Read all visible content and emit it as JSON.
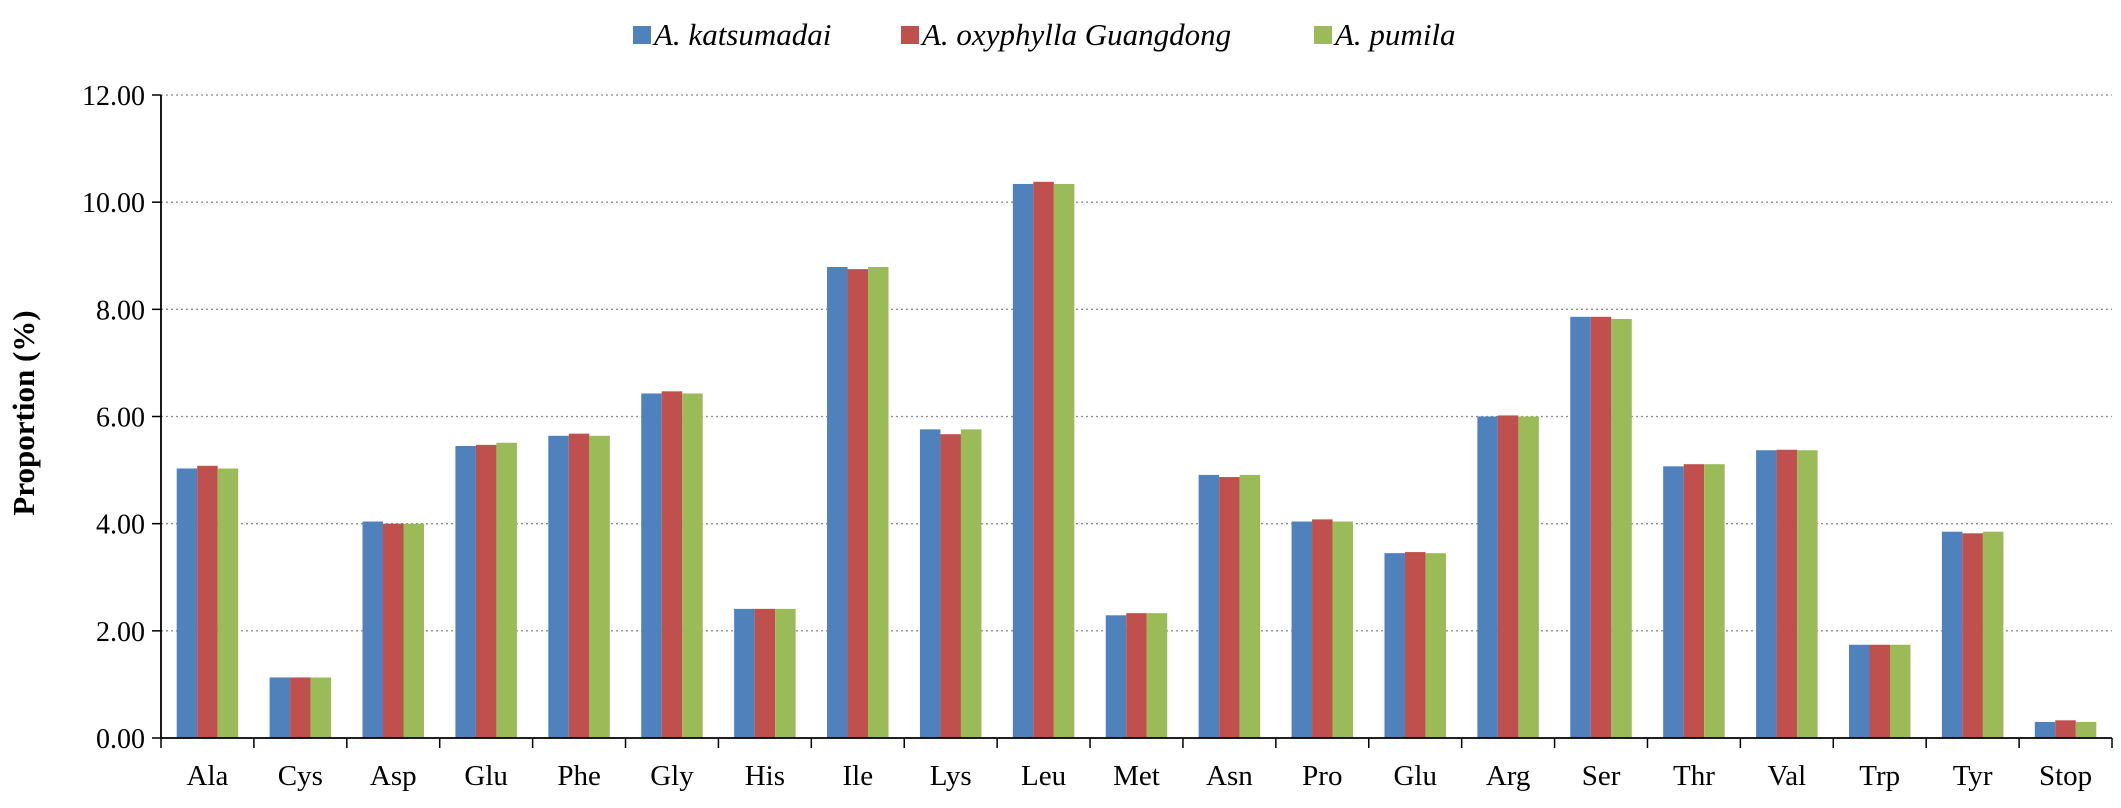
{
  "chart_data": {
    "type": "bar",
    "title": "",
    "xlabel": "",
    "ylabel": "Proportion (%)",
    "ylim": [
      0,
      12
    ],
    "yticks": [
      "0.00",
      "2.00",
      "4.00",
      "6.00",
      "8.00",
      "10.00",
      "12.00"
    ],
    "grid": "horizontal dotted",
    "legend_position": "top-center",
    "categories": [
      "Ala",
      "Cys",
      "Asp",
      "Glu",
      "Phe",
      "Gly",
      "His",
      "Ile",
      "Lys",
      "Leu",
      "Met",
      "Asn",
      "Pro",
      "Glu",
      "Arg",
      "Ser",
      "Thr",
      "Val",
      "Trp",
      "Tyr",
      "Stop"
    ],
    "series": [
      {
        "name": "A. katsumadai",
        "color": "#4f81bd",
        "values": [
          5.03,
          1.13,
          4.04,
          5.45,
          5.64,
          6.43,
          2.41,
          8.79,
          5.76,
          10.34,
          2.29,
          4.91,
          4.04,
          3.45,
          6.0,
          7.86,
          5.07,
          5.37,
          1.74,
          3.85,
          0.3
        ]
      },
      {
        "name": "A. oxyphylla Guangdong",
        "color": "#c0504d",
        "values": [
          5.08,
          1.13,
          4.0,
          5.47,
          5.68,
          6.47,
          2.41,
          8.75,
          5.67,
          10.38,
          2.33,
          4.87,
          4.08,
          3.47,
          6.02,
          7.86,
          5.11,
          5.38,
          1.74,
          3.82,
          0.33
        ]
      },
      {
        "name": "A. pumila",
        "color": "#9bbb59",
        "values": [
          5.03,
          1.13,
          4.0,
          5.51,
          5.64,
          6.43,
          2.41,
          8.79,
          5.76,
          10.34,
          2.33,
          4.91,
          4.04,
          3.45,
          6.0,
          7.82,
          5.11,
          5.37,
          1.74,
          3.85,
          0.3
        ]
      }
    ]
  }
}
